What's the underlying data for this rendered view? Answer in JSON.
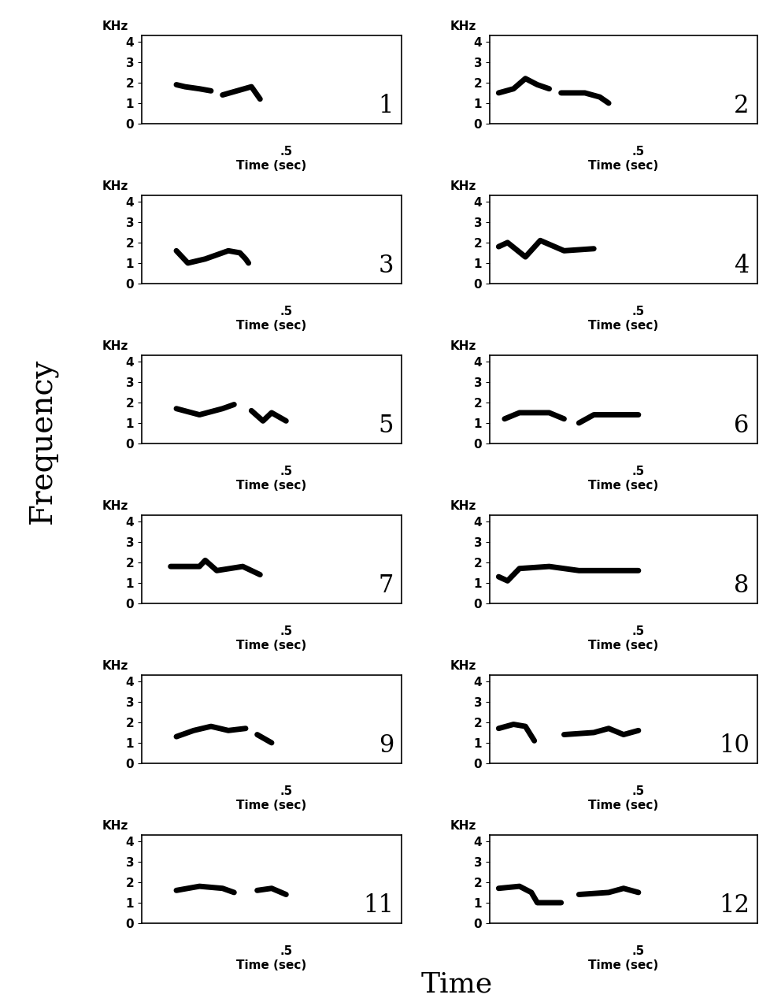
{
  "chart_data": [
    {
      "type": "line",
      "title": "1",
      "x_label": "Time (sec)",
      "y_label": "KHz",
      "color": "#000000",
      "x": [
        0.12,
        0.15,
        0.2,
        0.24,
        null,
        0.28,
        0.33,
        0.38,
        0.41
      ],
      "values": [
        1.9,
        1.8,
        1.7,
        1.6,
        null,
        1.4,
        1.6,
        1.8,
        1.2
      ],
      "xlim": [
        0,
        0.9
      ],
      "ylim": [
        0,
        4.3
      ],
      "xticks": [
        {
          "value": 0.5,
          "label": ".5"
        }
      ],
      "yticks": [
        0,
        1,
        2,
        3,
        4
      ]
    },
    {
      "type": "line",
      "title": "2",
      "x_label": "Time (sec)",
      "y_label": "KHz",
      "color": "#000000",
      "x": [
        0.03,
        0.08,
        0.12,
        0.16,
        0.2,
        null,
        0.24,
        0.32,
        0.37,
        0.4
      ],
      "values": [
        1.5,
        1.7,
        2.2,
        1.9,
        1.7,
        null,
        1.5,
        1.5,
        1.3,
        1.0
      ],
      "xlim": [
        0,
        0.9
      ],
      "ylim": [
        0,
        4.3
      ],
      "xticks": [
        {
          "value": 0.5,
          "label": ".5"
        }
      ],
      "yticks": [
        0,
        1,
        2,
        3,
        4
      ]
    },
    {
      "type": "line",
      "title": "3",
      "x_label": "Time (sec)",
      "y_label": "KHz",
      "color": "#000000",
      "x": [
        0.12,
        0.14,
        0.16,
        0.22,
        0.3,
        0.34,
        0.36,
        0.37
      ],
      "values": [
        1.6,
        1.3,
        1.0,
        1.2,
        1.6,
        1.5,
        1.2,
        1.0
      ],
      "xlim": [
        0,
        0.9
      ],
      "ylim": [
        0,
        4.3
      ],
      "xticks": [
        {
          "value": 0.5,
          "label": ".5"
        }
      ],
      "yticks": [
        0,
        1,
        2,
        3,
        4
      ]
    },
    {
      "type": "line",
      "title": "4",
      "x_label": "Time (sec)",
      "y_label": "KHz",
      "color": "#000000",
      "x": [
        0.03,
        0.06,
        0.12,
        0.17,
        0.25,
        0.35
      ],
      "values": [
        1.8,
        2.0,
        1.3,
        2.1,
        1.6,
        1.7
      ],
      "xlim": [
        0,
        0.9
      ],
      "ylim": [
        0,
        4.3
      ],
      "xticks": [
        {
          "value": 0.5,
          "label": ".5"
        }
      ],
      "yticks": [
        0,
        1,
        2,
        3,
        4
      ]
    },
    {
      "type": "line",
      "title": "5",
      "x_label": "Time (sec)",
      "y_label": "KHz",
      "color": "#000000",
      "x": [
        0.12,
        0.2,
        0.28,
        0.32,
        null,
        0.38,
        0.42,
        0.45,
        0.5
      ],
      "values": [
        1.7,
        1.4,
        1.7,
        1.9,
        null,
        1.6,
        1.1,
        1.5,
        1.1
      ],
      "xlim": [
        0,
        0.9
      ],
      "ylim": [
        0,
        4.3
      ],
      "xticks": [
        {
          "value": 0.5,
          "label": ".5"
        }
      ],
      "yticks": [
        0,
        1,
        2,
        3,
        4
      ]
    },
    {
      "type": "line",
      "title": "6",
      "x_label": "Time (sec)",
      "y_label": "KHz",
      "color": "#000000",
      "x": [
        0.05,
        0.1,
        0.2,
        0.25,
        null,
        0.3,
        0.35,
        0.45,
        0.5
      ],
      "values": [
        1.2,
        1.5,
        1.5,
        1.2,
        null,
        1.0,
        1.4,
        1.4,
        1.4
      ],
      "xlim": [
        0,
        0.9
      ],
      "ylim": [
        0,
        4.3
      ],
      "xticks": [
        {
          "value": 0.5,
          "label": ".5"
        }
      ],
      "yticks": [
        0,
        1,
        2,
        3,
        4
      ]
    },
    {
      "type": "line",
      "title": "7",
      "x_label": "Time (sec)",
      "y_label": "KHz",
      "color": "#000000",
      "x": [
        0.1,
        0.2,
        0.22,
        0.26,
        0.35,
        0.41
      ],
      "values": [
        1.8,
        1.8,
        2.1,
        1.6,
        1.8,
        1.4
      ],
      "xlim": [
        0,
        0.9
      ],
      "ylim": [
        0,
        4.3
      ],
      "xticks": [
        {
          "value": 0.5,
          "label": ".5"
        }
      ],
      "yticks": [
        0,
        1,
        2,
        3,
        4
      ]
    },
    {
      "type": "line",
      "title": "8",
      "x_label": "Time (sec)",
      "y_label": "KHz",
      "color": "#000000",
      "x": [
        0.03,
        0.06,
        0.1,
        0.2,
        0.3,
        0.5
      ],
      "values": [
        1.3,
        1.1,
        1.7,
        1.8,
        1.6,
        1.6
      ],
      "xlim": [
        0,
        0.9
      ],
      "ylim": [
        0,
        4.3
      ],
      "xticks": [
        {
          "value": 0.5,
          "label": ".5"
        }
      ],
      "yticks": [
        0,
        1,
        2,
        3,
        4
      ]
    },
    {
      "type": "line",
      "title": "9",
      "x_label": "Time (sec)",
      "y_label": "KHz",
      "color": "#000000",
      "x": [
        0.12,
        0.18,
        0.24,
        0.3,
        0.36,
        null,
        0.4,
        0.45
      ],
      "values": [
        1.3,
        1.6,
        1.8,
        1.6,
        1.7,
        null,
        1.4,
        1.0
      ],
      "xlim": [
        0,
        0.9
      ],
      "ylim": [
        0,
        4.3
      ],
      "xticks": [
        {
          "value": 0.5,
          "label": ".5"
        }
      ],
      "yticks": [
        0,
        1,
        2,
        3,
        4
      ]
    },
    {
      "type": "line",
      "title": "10",
      "x_label": "Time (sec)",
      "y_label": "KHz",
      "color": "#000000",
      "x": [
        0.03,
        0.08,
        0.12,
        0.15,
        null,
        0.25,
        0.35,
        0.4,
        0.45,
        0.5
      ],
      "values": [
        1.7,
        1.9,
        1.8,
        1.1,
        null,
        1.4,
        1.5,
        1.7,
        1.4,
        1.6
      ],
      "xlim": [
        0,
        0.9
      ],
      "ylim": [
        0,
        4.3
      ],
      "xticks": [
        {
          "value": 0.5,
          "label": ".5"
        }
      ],
      "yticks": [
        0,
        1,
        2,
        3,
        4
      ]
    },
    {
      "type": "line",
      "title": "11",
      "x_label": "Time (sec)",
      "y_label": "KHz",
      "color": "#000000",
      "x": [
        0.12,
        0.2,
        0.28,
        0.32,
        null,
        0.4,
        0.45,
        0.5
      ],
      "values": [
        1.6,
        1.8,
        1.7,
        1.5,
        null,
        1.6,
        1.7,
        1.4
      ],
      "xlim": [
        0,
        0.9
      ],
      "ylim": [
        0,
        4.3
      ],
      "xticks": [
        {
          "value": 0.5,
          "label": ".5"
        }
      ],
      "yticks": [
        0,
        1,
        2,
        3,
        4
      ]
    },
    {
      "type": "line",
      "title": "12",
      "x_label": "Time (sec)",
      "y_label": "KHz",
      "color": "#000000",
      "x": [
        0.03,
        0.1,
        0.14,
        0.16,
        0.24,
        null,
        0.3,
        0.4,
        0.45,
        0.5
      ],
      "values": [
        1.7,
        1.8,
        1.5,
        1.0,
        1.0,
        null,
        1.4,
        1.5,
        1.7,
        1.5
      ],
      "xlim": [
        0,
        0.9
      ],
      "ylim": [
        0,
        4.3
      ],
      "xticks": [
        {
          "value": 0.5,
          "label": ".5"
        }
      ],
      "yticks": [
        0,
        1,
        2,
        3,
        4
      ]
    }
  ],
  "y_label": "Frequency",
  "x_label": "Time"
}
